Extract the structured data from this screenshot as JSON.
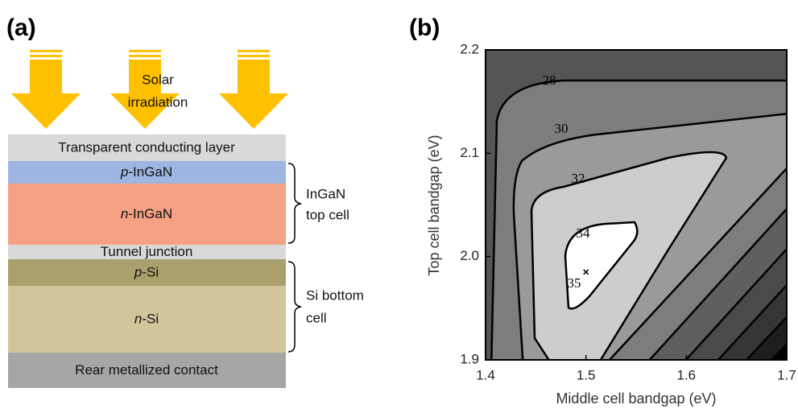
{
  "panel_a": {
    "label": "(a)",
    "sun_label": [
      "Solar",
      "irradiation"
    ],
    "layers": [
      {
        "text": "Transparent conducting layer"
      },
      {
        "italic": "p",
        "text": "-InGaN"
      },
      {
        "italic": "n",
        "text": "-InGaN"
      },
      {
        "text": "Tunnel junction"
      },
      {
        "italic": "p",
        "text": "-Si"
      },
      {
        "italic": "n",
        "text": "-Si"
      },
      {
        "text": "Rear metallized contact"
      }
    ],
    "groups": [
      [
        "InGaN",
        "top cell"
      ],
      [
        "Si bottom",
        "cell"
      ]
    ]
  },
  "panel_b": {
    "label": "(b)",
    "x_label": "Middle cell bandgap (eV)",
    "y_label": "Top cell bandgap (eV)",
    "xlim": [
      1.4,
      1.7
    ],
    "ylim": [
      1.9,
      2.2
    ],
    "xticks": [
      1.4,
      1.5,
      1.6,
      1.7
    ],
    "yticks": [
      1.9,
      {
        "value": 2,
        "label": "2.0"
      },
      2.1,
      2.2
    ],
    "contour_levels": [
      28,
      30,
      32,
      34,
      35
    ],
    "optimum": {
      "x": 1.5,
      "y": 1.985
    }
  }
}
